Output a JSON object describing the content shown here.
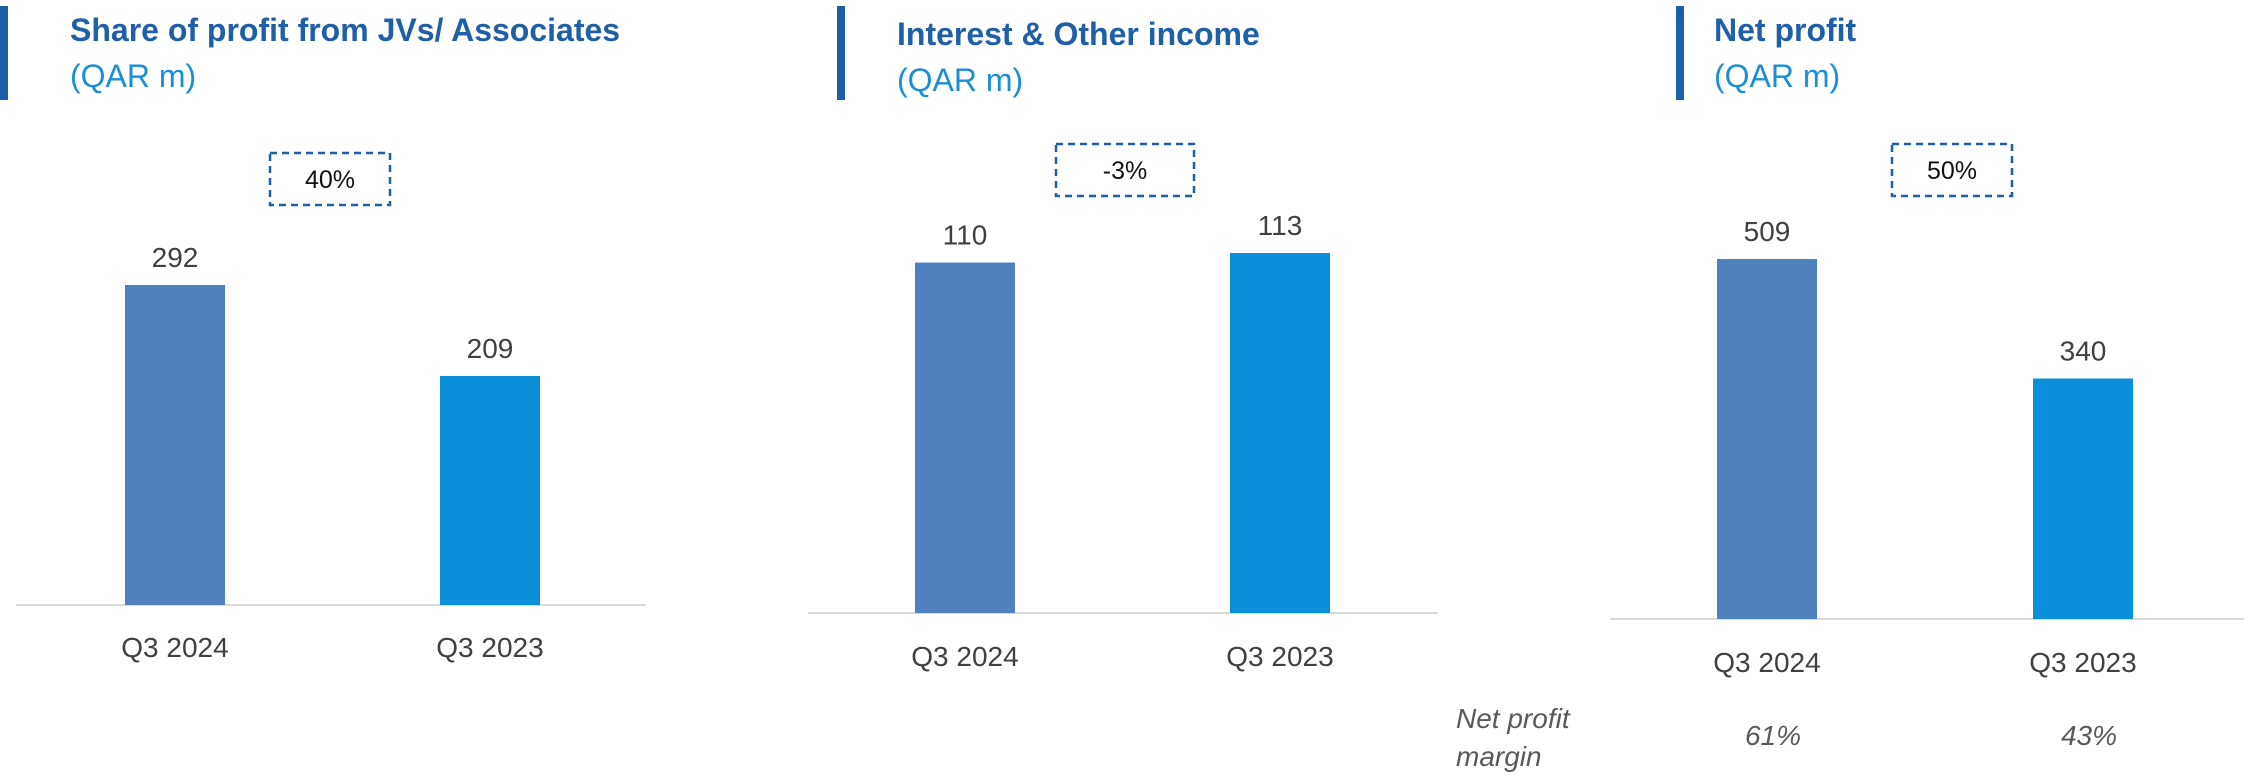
{
  "chart_data": [
    {
      "type": "bar",
      "title": "Share of profit from JVs/ Associates",
      "subtitle": "(QAR m)",
      "categories": [
        "Q3 2024",
        "Q3 2023"
      ],
      "values": [
        292,
        209
      ],
      "bar_colors": [
        "#4f81bd",
        "#0a8fd8"
      ],
      "change_label": "40%"
    },
    {
      "type": "bar",
      "title": "Interest & Other income",
      "subtitle": "(QAR m)",
      "categories": [
        "Q3 2024",
        "Q3 2023"
      ],
      "values": [
        110,
        113
      ],
      "bar_colors": [
        "#4f81bd",
        "#0a8fd8"
      ],
      "change_label": "-3%"
    },
    {
      "type": "bar",
      "title": "Net profit",
      "subtitle": "(QAR m)",
      "categories": [
        "Q3 2024",
        "Q3 2023"
      ],
      "values": [
        509,
        340
      ],
      "bar_colors": [
        "#4f81bd",
        "#0a8fd8"
      ],
      "change_label": "50%",
      "footer": {
        "label": "Net profit margin",
        "values": [
          "61%",
          "43%"
        ]
      }
    }
  ],
  "colors": {
    "title": "#1f5fa8",
    "unit": "#1a8fd6",
    "bar_current": "#4f81bd",
    "bar_previous": "#0a8fd8",
    "axis": "#d9d9d9",
    "change_box_border": "#1f5fa8"
  }
}
